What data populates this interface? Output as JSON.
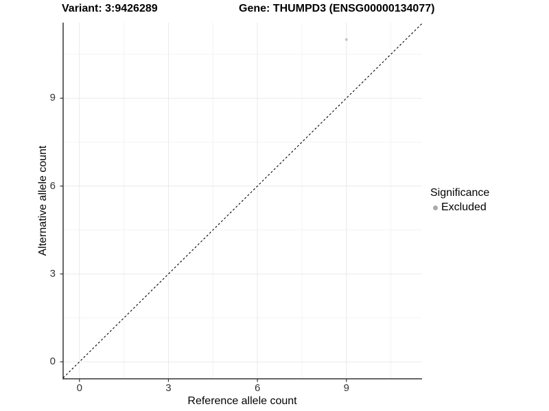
{
  "titles": {
    "variant": "Variant: 3:9426289",
    "gene": "Gene: THUMPD3 (ENSG00000134077)"
  },
  "axes": {
    "x_label": "Reference allele count",
    "y_label": "Alternative allele count",
    "x_tick_labels": [
      "0",
      "3",
      "6",
      "9"
    ],
    "y_tick_labels": [
      "0",
      "3",
      "6",
      "9"
    ]
  },
  "legend": {
    "title": "Significance",
    "items": [
      {
        "label": "Excluded",
        "color": "#aaaaaa"
      }
    ]
  },
  "colors": {
    "background": "#ffffff",
    "grid_major": "#e9e9e9",
    "grid_minor": "#f3f3f3",
    "axis_line": "#333333",
    "tick_mark": "#333333",
    "tick_label": "#333333",
    "identity_line": "#000000",
    "point": "#c6c6c6"
  },
  "chart_data": {
    "type": "scatter",
    "title": "Variant: 3:9426289 | Gene: THUMPD3 (ENSG00000134077)",
    "xlabel": "Reference allele count",
    "ylabel": "Alternative allele count",
    "xlim": [
      -0.55,
      11.55
    ],
    "ylim": [
      -0.58,
      11.58
    ],
    "x_ticks": [
      0,
      3,
      6,
      9
    ],
    "y_ticks": [
      0,
      3,
      6,
      9
    ],
    "x_minor_ticks": [
      1.5,
      4.5,
      7.5,
      10.5
    ],
    "y_minor_ticks": [
      1.5,
      4.5,
      7.5,
      10.5
    ],
    "grid": "on",
    "legend_position": "right",
    "legend_title": "Significance",
    "series": [
      {
        "name": "Excluded",
        "color": "#c6c6c6",
        "points": [
          {
            "x": 9,
            "y": 11
          }
        ]
      }
    ],
    "reference_line": {
      "type": "identity",
      "slope": 1,
      "intercept": 0,
      "style": "dashed",
      "color": "#000000"
    }
  }
}
